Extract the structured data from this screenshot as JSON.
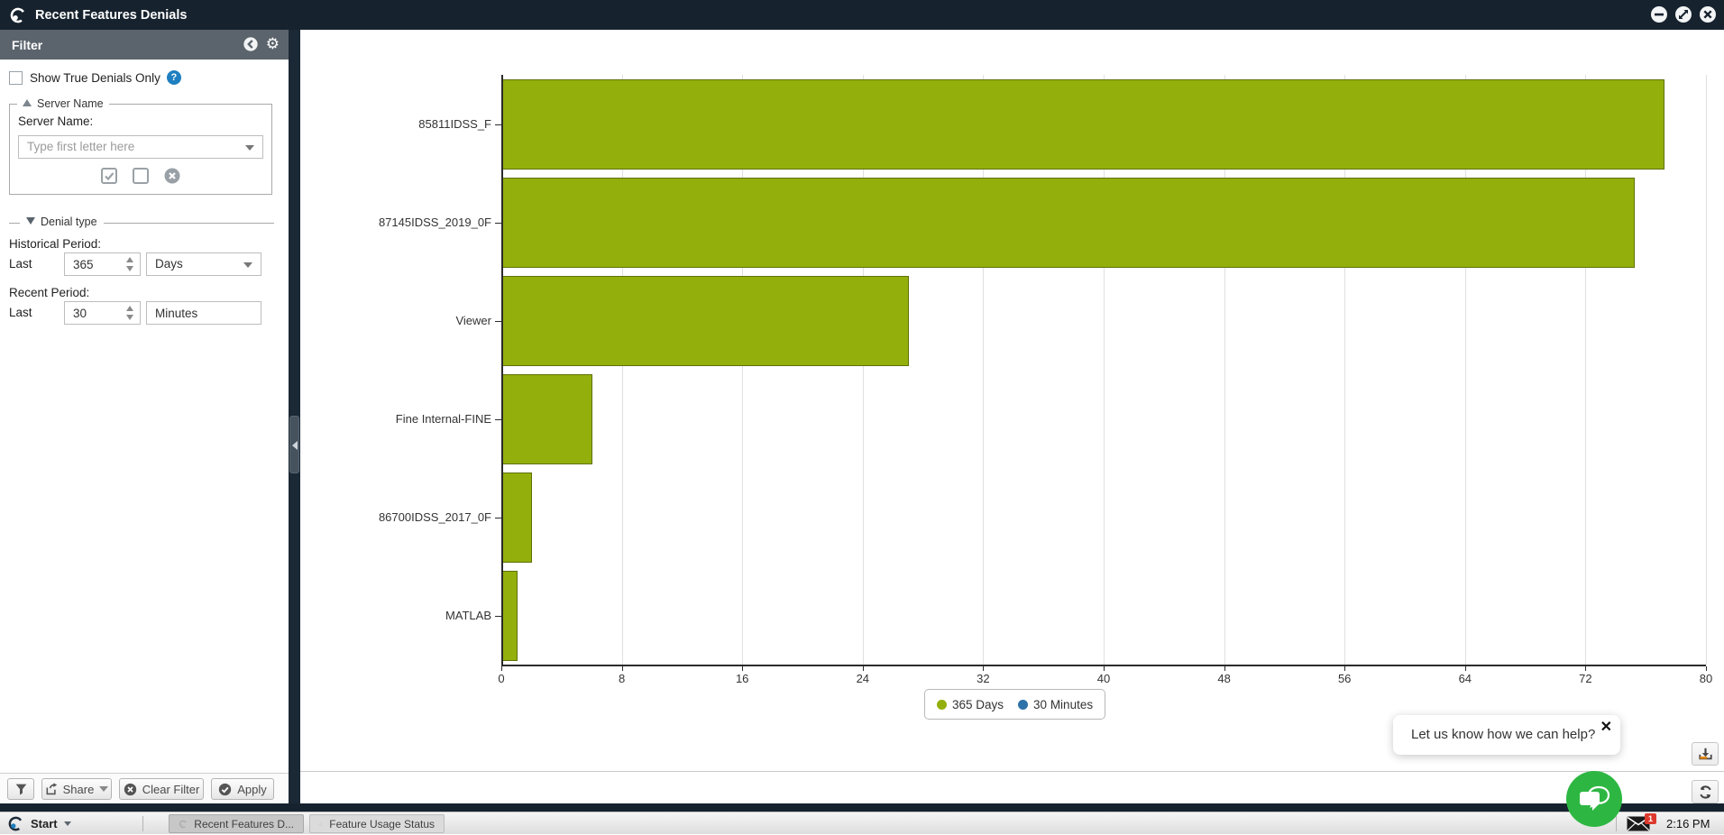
{
  "window": {
    "title": "Recent Features Denials"
  },
  "icons": {
    "gear": "⚙",
    "question": "?",
    "close_x": "✕"
  },
  "filter": {
    "header": "Filter",
    "show_true_denials": "Show True Denials Only",
    "server_name": {
      "legend": "Server Name",
      "label": "Server Name:",
      "placeholder": "Type first letter here"
    },
    "denial_type_legend": "Denial type",
    "historical": {
      "label": "Historical Period:",
      "last": "Last",
      "value": "365",
      "unit": "Days"
    },
    "recent": {
      "label": "Recent Period:",
      "last": "Last",
      "value": "30",
      "unit": "Minutes"
    },
    "buttons": {
      "share": "Share",
      "clear": "Clear Filter",
      "apply": "Apply"
    }
  },
  "chart_data": {
    "type": "bar",
    "orientation": "horizontal",
    "title": "",
    "categories": [
      "85811IDSS_F",
      "87145IDSS_2019_0F",
      "Viewer",
      "Fine Internal-FINE",
      "86700IDSS_2017_0F",
      "MATLAB"
    ],
    "series": [
      {
        "name": "365 Days",
        "color": "#93af0b",
        "border_color": "#5f7108",
        "values": [
          77.2,
          75.2,
          27,
          6,
          2,
          1
        ]
      },
      {
        "name": "30 Minutes",
        "color": "#2d71a9",
        "border_color": "#1f537f",
        "values": [
          0,
          0,
          0,
          0,
          0,
          0
        ]
      }
    ],
    "xlim": [
      0,
      80
    ],
    "xticks": [
      0,
      8,
      16,
      24,
      32,
      40,
      48,
      56,
      64,
      72,
      80
    ],
    "grid": true,
    "legend_position": "bottom"
  },
  "help_widget": {
    "tooltip": "Let us know how we can help?"
  },
  "taskbar": {
    "start": "Start",
    "tabs": [
      "Recent Features D...",
      "Feature Usage Status"
    ],
    "mail_badge": "1",
    "time": "2:16 PM"
  }
}
